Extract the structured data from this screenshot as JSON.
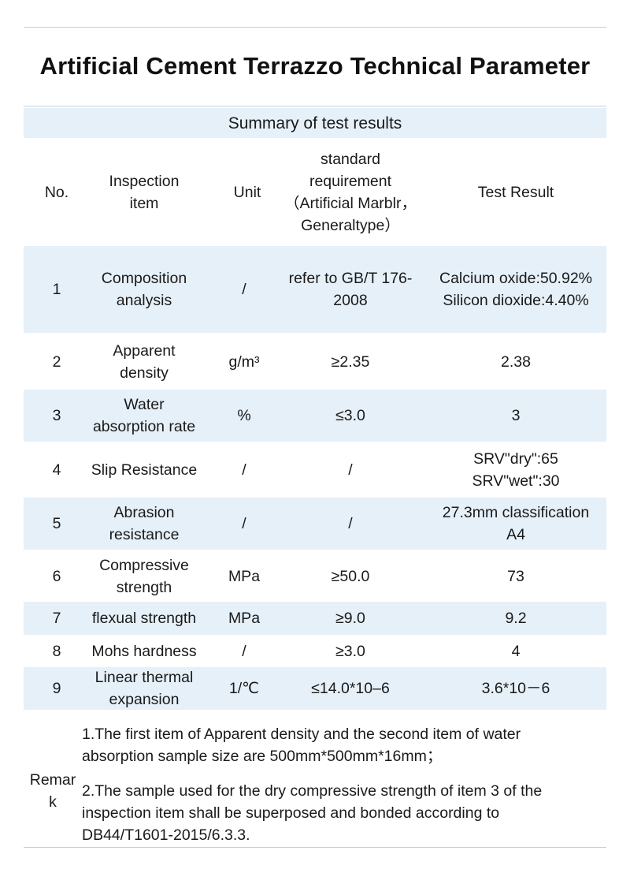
{
  "title": "Artificial Cement Terrazzo Technical Parameter",
  "table": {
    "summary": "Summary of test results",
    "headers": {
      "no": "No.",
      "item_line1": "Inspection",
      "item_line2": "item",
      "unit": "Unit",
      "std_line1": "standard",
      "std_line2": "requirement",
      "std_line3": "（Artificial Marblr，",
      "std_line4": "Generaltype）",
      "result": "Test Result"
    },
    "rows": [
      {
        "no": "1",
        "item": [
          "Composition",
          "analysis"
        ],
        "unit": "/",
        "std": [
          "refer to GB/T 176-",
          "2008"
        ],
        "result": [
          "Calcium oxide:50.92%",
          "Silicon dioxide:4.40%"
        ]
      },
      {
        "no": "2",
        "item": [
          "Apparent",
          "density"
        ],
        "unit": "g/m³",
        "std": [
          "≥2.35"
        ],
        "result": [
          "2.38"
        ]
      },
      {
        "no": "3",
        "item": [
          "Water",
          "absorption rate"
        ],
        "unit": "%",
        "std": [
          "≤3.0"
        ],
        "result": [
          "3"
        ]
      },
      {
        "no": "4",
        "item": [
          "Slip Resistance"
        ],
        "unit": "/",
        "std": [
          "/"
        ],
        "result": [
          "SRV\"dry\":65",
          "SRV\"wet\":30"
        ]
      },
      {
        "no": "5",
        "item": [
          "Abrasion",
          "resistance"
        ],
        "unit": "/",
        "std": [
          "/"
        ],
        "result": [
          "27.3mm classification",
          "A4"
        ]
      },
      {
        "no": "6",
        "item": [
          "Compressive",
          "strength"
        ],
        "unit": "MPa",
        "std": [
          "≥50.0"
        ],
        "result": [
          "73"
        ]
      },
      {
        "no": "7",
        "item": [
          "flexual strength"
        ],
        "unit": "MPa",
        "std": [
          "≥9.0"
        ],
        "result": [
          "9.2"
        ]
      },
      {
        "no": "8",
        "item": [
          "Mohs hardness"
        ],
        "unit": "/",
        "std": [
          "≥3.0"
        ],
        "result": [
          "4"
        ]
      },
      {
        "no": "9",
        "item": [
          "Linear thermal",
          "expansion"
        ],
        "unit": "1/℃",
        "std": [
          "≤14.0*10–6"
        ],
        "result": [
          "3.6*10－6"
        ]
      }
    ],
    "remark": {
      "label_line1": "Remar",
      "label_line2": "k",
      "note1_line1": "1.The first item of Apparent density and the second item of water",
      "note1_line2": "absorption sample size are 500mm*500mm*16mm；",
      "note2_line1": "2.The sample used for the dry compressive strength of item 3 of the",
      "note2_line2": "inspection item shall be superposed and bonded according to",
      "note2_line3": "DB44/T1601-2015/6.3.3."
    }
  }
}
